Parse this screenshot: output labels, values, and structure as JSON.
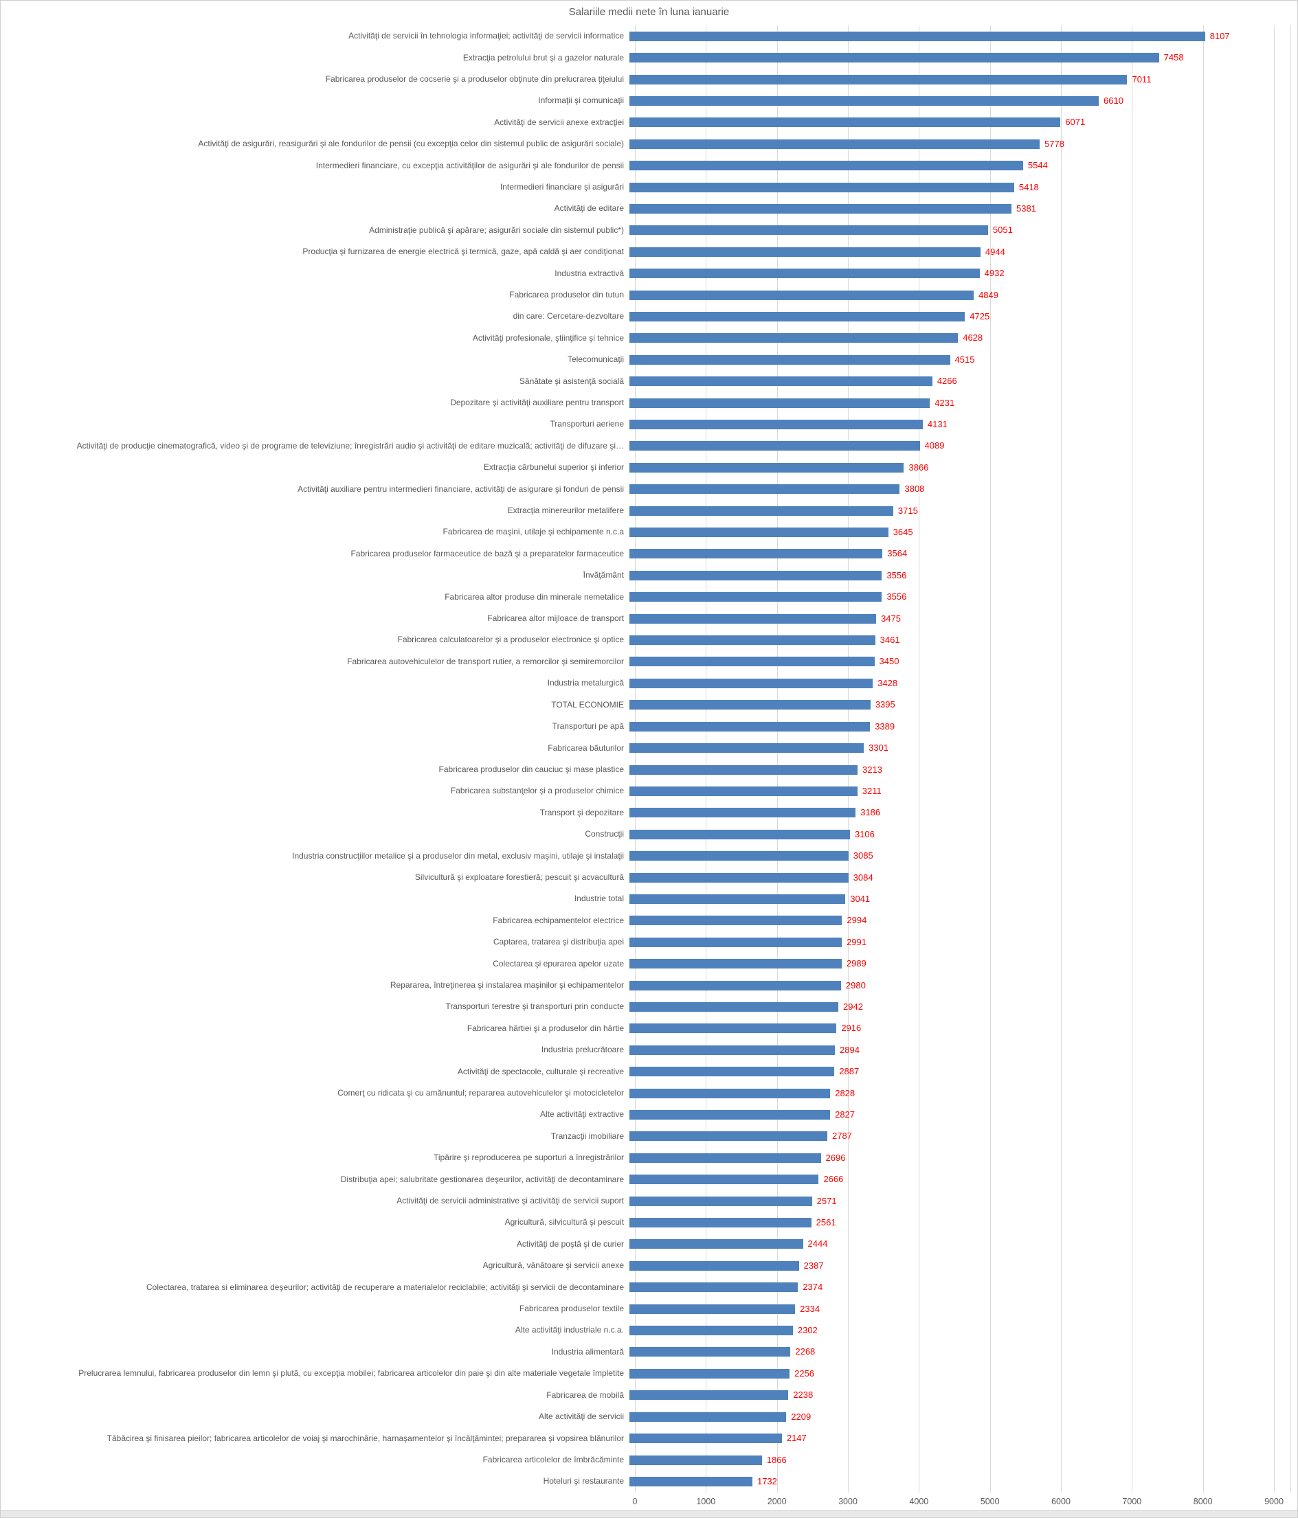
{
  "title": "Salariile medii nete în luna ianuarie",
  "colors": {
    "bar": "#4F81BD",
    "value_label": "#FF0000",
    "text": "#595959",
    "gridline": "#D9D9D9"
  },
  "x_axis": {
    "ticks": [
      0,
      1000,
      2000,
      3000,
      4000,
      5000,
      6000,
      7000,
      8000,
      9000
    ],
    "max": 9000
  },
  "chart_data": {
    "type": "bar",
    "orientation": "horizontal",
    "title": "Salariile medii nete în luna ianuarie",
    "xlabel": "",
    "ylabel": "",
    "xlim": [
      0,
      9000
    ],
    "grid": true,
    "legend": "none",
    "categories": [
      "Activităţi de servicii în tehnologia informaţiei; activităţi de servicii informatice",
      "Extracţia petrolului brut şi a gazelor naturale",
      "Fabricarea produselor de cocserie şi a produselor obţinute din prelucrarea ţiţeiului",
      "Informaţii şi comunicaţii",
      "Activităţi de servicii anexe extracţiei",
      "Activităţi de asigurări, reasigurări şi ale fondurilor de pensii (cu excepţia celor din sistemul public de asigurări sociale)",
      "Intermedieri financiare, cu excepţia activităţilor de asigurări şi ale fondurilor de pensii",
      "Intermedieri financiare şi asigurări",
      "Activităţi de editare",
      "Administraţie publică şi apărare; asigurări sociale din sistemul public*)",
      "Producţia şi furnizarea de energie electrică şi termică, gaze, apă caldă şi aer condiţionat",
      "Industria extractivă",
      "Fabricarea produselor din tutun",
      "din care: Cercetare-dezvoltare",
      "Activităţi profesionale, ştiinţifice şi tehnice",
      "Telecomunicaţii",
      "Sănătate şi asistenţă socială",
      "Depozitare şi activităţi auxiliare pentru transport",
      "Transporturi aeriene",
      "Activităţi de producţie cinematografică, video şi de programe de televiziune; înregistrări audio şi activităţi de editare muzicală; activităţi de difuzare şi…",
      "Extracţia cărbunelui superior şi inferior",
      "Activităţi auxiliare pentru intermedieri financiare, activităţi de asigurare şi fonduri de pensii",
      "Extracţia minereurilor metalifere",
      "Fabricarea de maşini, utilaje şi echipamente n.c.a",
      "Fabricarea produselor farmaceutice de bază şi a preparatelor farmaceutice",
      "Învăţământ",
      "Fabricarea altor produse din minerale nemetalice",
      "Fabricarea altor mijloace de transport",
      "Fabricarea calculatoarelor şi a produselor electronice şi optice",
      "Fabricarea autovehiculelor de transport rutier, a remorcilor şi semiremorcilor",
      "Industria metalurgică",
      "TOTAL ECONOMIE",
      "Transporturi pe apă",
      "Fabricarea băuturilor",
      "Fabricarea produselor din cauciuc şi mase plastice",
      "Fabricarea substanţelor şi a produselor chimice",
      "Transport şi depozitare",
      "Construcţii",
      "Industria construcţiilor metalice şi a produselor din metal, exclusiv maşini, utilaje şi instalaţii",
      "Silvicultură şi exploatare forestieră; pescuit şi acvacultură",
      "Industrie total",
      "Fabricarea echipamentelor  electrice",
      "Captarea, tratarea şi distribuţia apei",
      "Colectarea şi epurarea apelor uzate",
      "Repararea, întreţinerea şi instalarea maşinilor şi echipamentelor",
      "Transporturi terestre şi transporturi prin conducte",
      "Fabricarea hârtiei şi a produselor din hârtie",
      "Industria prelucrătoare",
      "Activităţi de spectacole, culturale şi recreative",
      "Comerţ cu ridicata şi cu amănuntul; repararea autovehiculelor şi motocicletelor",
      "Alte activităţi extractive",
      "Tranzacţii imobiliare",
      "Tipărire şi reproducerea pe suporturi a înregistrărilor",
      "Distribuţia apei; salubritate gestionarea deşeurilor, activităţi de decontaminare",
      "Activităţi de servicii administrative şi activităţi de servicii suport",
      "Agricultură, silvicultură şi pescuit",
      "Activităţi de poştă şi de curier",
      "Agricultură, vânătoare şi servicii anexe",
      "Colectarea, tratarea si eliminarea deşeurilor; activităţi de recuperare a materialelor reciclabile; activităţi şi servicii de decontaminare",
      "Fabricarea produselor textile",
      "Alte activităţi industriale n.c.a.",
      "Industria alimentară",
      "Prelucrarea lemnului, fabricarea produselor din lemn şi plută, cu excepţia mobilei; fabricarea articolelor din paie şi din alte materiale vegetale împletite",
      "Fabricarea de mobilă",
      "Alte activităţi de servicii",
      "Tăbăcirea şi finisarea pieilor; fabricarea articolelor de voiaj şi marochinărie, harnaşamentelor şi încălţămintei; prepararea şi vopsirea blănurilor",
      "Fabricarea articolelor de îmbrăcăminte",
      "Hoteluri şi restaurante"
    ],
    "values": [
      8107,
      7458,
      7011,
      6610,
      6071,
      5778,
      5544,
      5418,
      5381,
      5051,
      4944,
      4932,
      4849,
      4725,
      4628,
      4515,
      4266,
      4231,
      4131,
      4089,
      3866,
      3808,
      3715,
      3645,
      3564,
      3556,
      3556,
      3475,
      3461,
      3450,
      3428,
      3395,
      3389,
      3301,
      3213,
      3211,
      3186,
      3106,
      3085,
      3084,
      3041,
      2994,
      2991,
      2989,
      2980,
      2942,
      2916,
      2894,
      2887,
      2828,
      2827,
      2787,
      2696,
      2666,
      2571,
      2561,
      2444,
      2387,
      2374,
      2334,
      2302,
      2268,
      2256,
      2238,
      2209,
      2147,
      1866,
      1732
    ]
  }
}
